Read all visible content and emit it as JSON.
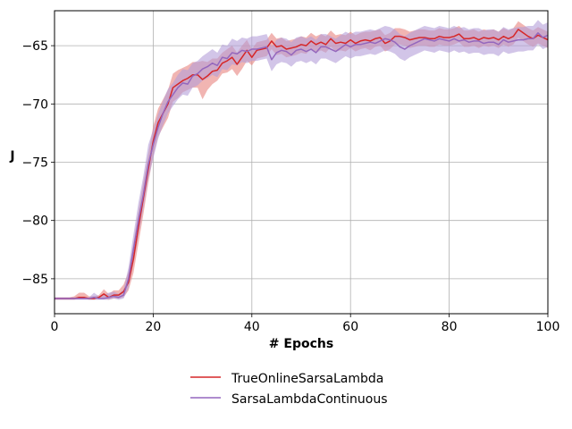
{
  "chart_data": {
    "type": "line",
    "title": "",
    "xlabel": "# Epochs",
    "ylabel": "J",
    "xlim": [
      0,
      100
    ],
    "ylim": [
      -88,
      -62
    ],
    "xticks": [
      0,
      20,
      40,
      60,
      80,
      100
    ],
    "yticks": [
      -85,
      -80,
      -75,
      -70,
      -65
    ],
    "ytick_labels": [
      "−85",
      "−80",
      "−75",
      "−70",
      "−65"
    ],
    "grid": true,
    "legend_position": "bottom-center",
    "x": [
      0,
      1,
      2,
      3,
      4,
      5,
      6,
      7,
      8,
      9,
      10,
      11,
      12,
      13,
      14,
      15,
      16,
      17,
      18,
      19,
      20,
      21,
      22,
      23,
      24,
      25,
      26,
      27,
      28,
      29,
      30,
      31,
      32,
      33,
      34,
      35,
      36,
      37,
      38,
      39,
      40,
      41,
      42,
      43,
      44,
      45,
      46,
      47,
      48,
      49,
      50,
      51,
      52,
      53,
      54,
      55,
      56,
      57,
      58,
      59,
      60,
      61,
      62,
      63,
      64,
      65,
      66,
      67,
      68,
      69,
      70,
      71,
      72,
      73,
      74,
      75,
      76,
      77,
      78,
      79,
      80,
      81,
      82,
      83,
      84,
      85,
      86,
      87,
      88,
      89,
      90,
      91,
      92,
      93,
      94,
      95,
      96,
      97,
      98,
      99,
      100
    ],
    "series": [
      {
        "name": "TrueOnlineSarsaLambda",
        "color": "#d62728",
        "band_color": "#e8837f",
        "values": [
          -86.7,
          -86.7,
          -86.7,
          -86.7,
          -86.7,
          -86.6,
          -86.6,
          -86.7,
          -86.7,
          -86.6,
          -86.3,
          -86.6,
          -86.4,
          -86.4,
          -86.1,
          -85.3,
          -83.3,
          -80.6,
          -78.1,
          -75.6,
          -73.2,
          -71.6,
          -70.8,
          -70.0,
          -68.6,
          -68.3,
          -68.0,
          -67.8,
          -67.5,
          -67.5,
          -67.9,
          -67.6,
          -67.2,
          -67.1,
          -66.5,
          -66.3,
          -66.0,
          -66.6,
          -66.0,
          -65.4,
          -66.0,
          -65.4,
          -65.3,
          -65.2,
          -64.6,
          -65.1,
          -65.0,
          -65.3,
          -65.2,
          -65.1,
          -64.9,
          -65.0,
          -64.6,
          -64.9,
          -64.7,
          -64.9,
          -64.4,
          -64.8,
          -64.7,
          -64.8,
          -64.5,
          -64.8,
          -64.6,
          -64.5,
          -64.6,
          -64.4,
          -64.3,
          -64.8,
          -64.6,
          -64.2,
          -64.2,
          -64.3,
          -64.5,
          -64.4,
          -64.3,
          -64.3,
          -64.4,
          -64.4,
          -64.2,
          -64.3,
          -64.3,
          -64.2,
          -64.0,
          -64.4,
          -64.4,
          -64.3,
          -64.5,
          -64.3,
          -64.4,
          -64.3,
          -64.5,
          -64.2,
          -64.4,
          -64.2,
          -63.6,
          -63.9,
          -64.2,
          -64.4,
          -64.1,
          -64.3,
          -64.5
        ],
        "lower": [
          -86.8,
          -86.8,
          -86.8,
          -86.8,
          -86.8,
          -86.7,
          -86.7,
          -86.8,
          -86.8,
          -86.7,
          -86.7,
          -86.8,
          -86.7,
          -86.7,
          -86.6,
          -86.0,
          -84.5,
          -82.0,
          -79.5,
          -76.8,
          -74.5,
          -72.8,
          -72.0,
          -71.2,
          -69.8,
          -69.5,
          -69.0,
          -68.8,
          -68.6,
          -68.6,
          -69.6,
          -68.8,
          -68.3,
          -68.0,
          -67.4,
          -67.3,
          -67.0,
          -67.6,
          -67.0,
          -66.3,
          -66.7,
          -66.1,
          -66.0,
          -65.9,
          -65.3,
          -65.8,
          -65.7,
          -66.0,
          -65.9,
          -65.8,
          -65.6,
          -65.7,
          -65.3,
          -65.6,
          -65.4,
          -65.6,
          -65.1,
          -65.5,
          -65.4,
          -65.5,
          -65.2,
          -65.5,
          -65.3,
          -65.2,
          -65.4,
          -65.1,
          -65.0,
          -65.5,
          -65.3,
          -64.9,
          -64.9,
          -65.0,
          -65.2,
          -65.1,
          -65.0,
          -65.0,
          -65.1,
          -65.1,
          -64.9,
          -65.0,
          -65.0,
          -64.9,
          -64.7,
          -65.1,
          -65.1,
          -65.0,
          -65.2,
          -65.0,
          -65.1,
          -65.0,
          -65.2,
          -64.9,
          -65.1,
          -64.9,
          -64.3,
          -64.6,
          -64.9,
          -65.1,
          -64.8,
          -65.0,
          -65.2
        ],
        "upper": [
          -86.6,
          -86.6,
          -86.6,
          -86.6,
          -86.5,
          -86.2,
          -86.2,
          -86.5,
          -86.5,
          -86.4,
          -85.9,
          -86.3,
          -86.0,
          -86.0,
          -85.5,
          -84.4,
          -81.9,
          -79.2,
          -76.7,
          -74.3,
          -71.9,
          -70.4,
          -69.6,
          -68.8,
          -67.4,
          -67.1,
          -66.9,
          -66.7,
          -66.4,
          -66.4,
          -66.3,
          -66.4,
          -66.1,
          -66.1,
          -65.6,
          -65.3,
          -65.0,
          -65.6,
          -65.0,
          -64.5,
          -65.3,
          -64.7,
          -64.6,
          -64.5,
          -63.9,
          -64.4,
          -64.3,
          -64.6,
          -64.5,
          -64.4,
          -64.2,
          -64.3,
          -63.9,
          -64.2,
          -64.0,
          -64.2,
          -63.7,
          -64.1,
          -64.0,
          -64.1,
          -63.8,
          -64.1,
          -63.9,
          -63.8,
          -63.8,
          -63.7,
          -63.6,
          -64.1,
          -63.9,
          -63.5,
          -63.5,
          -63.6,
          -63.8,
          -63.7,
          -63.6,
          -63.6,
          -63.7,
          -63.7,
          -63.5,
          -63.6,
          -63.6,
          -63.5,
          -63.3,
          -63.7,
          -63.7,
          -63.6,
          -63.8,
          -63.6,
          -63.7,
          -63.6,
          -63.8,
          -63.5,
          -63.7,
          -63.5,
          -62.9,
          -63.2,
          -63.5,
          -63.7,
          -63.4,
          -63.6,
          -63.8
        ]
      },
      {
        "name": "SarsaLambdaContinuous",
        "color": "#9467bd",
        "band_color": "#b49fd8",
        "values": [
          -86.7,
          -86.7,
          -86.7,
          -86.7,
          -86.7,
          -86.7,
          -86.7,
          -86.7,
          -86.6,
          -86.7,
          -86.7,
          -86.6,
          -86.5,
          -86.6,
          -86.4,
          -85.0,
          -82.5,
          -80.0,
          -77.8,
          -75.2,
          -73.5,
          -72.0,
          -70.8,
          -69.8,
          -69.2,
          -68.6,
          -68.2,
          -68.3,
          -67.6,
          -67.4,
          -67.0,
          -66.8,
          -66.5,
          -66.7,
          -66.0,
          -66.1,
          -65.6,
          -65.7,
          -65.4,
          -65.5,
          -65.3,
          -65.3,
          -65.2,
          -65.1,
          -66.2,
          -65.6,
          -65.4,
          -65.5,
          -65.8,
          -65.4,
          -65.3,
          -65.5,
          -65.3,
          -65.6,
          -65.1,
          -65.1,
          -65.3,
          -65.5,
          -65.2,
          -64.9,
          -65.1,
          -64.9,
          -64.9,
          -64.8,
          -64.7,
          -64.8,
          -64.6,
          -64.4,
          -64.5,
          -64.7,
          -65.1,
          -65.3,
          -65.0,
          -64.8,
          -64.6,
          -64.4,
          -64.5,
          -64.6,
          -64.4,
          -64.5,
          -64.6,
          -64.4,
          -64.6,
          -64.5,
          -64.7,
          -64.6,
          -64.6,
          -64.8,
          -64.7,
          -64.7,
          -64.9,
          -64.5,
          -64.7,
          -64.6,
          -64.5,
          -64.5,
          -64.4,
          -64.4,
          -63.9,
          -64.3,
          -64.1
        ],
        "lower": [
          -86.8,
          -86.8,
          -86.8,
          -86.8,
          -86.8,
          -86.8,
          -86.8,
          -86.8,
          -86.8,
          -86.8,
          -86.8,
          -86.8,
          -86.7,
          -86.8,
          -86.7,
          -85.8,
          -83.6,
          -81.3,
          -79.0,
          -76.5,
          -74.7,
          -73.0,
          -71.8,
          -70.8,
          -70.2,
          -69.6,
          -69.2,
          -69.3,
          -68.6,
          -68.4,
          -68.0,
          -67.8,
          -67.5,
          -67.7,
          -67.0,
          -67.1,
          -66.6,
          -66.7,
          -66.4,
          -66.5,
          -66.3,
          -66.3,
          -66.2,
          -66.1,
          -67.2,
          -66.6,
          -66.4,
          -66.5,
          -66.8,
          -66.4,
          -66.3,
          -66.5,
          -66.3,
          -66.6,
          -66.1,
          -66.1,
          -66.3,
          -66.5,
          -66.2,
          -65.9,
          -66.1,
          -65.9,
          -65.9,
          -65.8,
          -65.7,
          -65.8,
          -65.6,
          -65.4,
          -65.5,
          -65.7,
          -66.1,
          -66.3,
          -66.0,
          -65.8,
          -65.6,
          -65.4,
          -65.5,
          -65.6,
          -65.4,
          -65.5,
          -65.6,
          -65.4,
          -65.6,
          -65.5,
          -65.7,
          -65.6,
          -65.6,
          -65.8,
          -65.7,
          -65.7,
          -65.9,
          -65.5,
          -65.7,
          -65.6,
          -65.5,
          -65.5,
          -65.4,
          -65.4,
          -64.9,
          -65.3,
          -65.1
        ],
        "upper": [
          -86.6,
          -86.6,
          -86.6,
          -86.6,
          -86.6,
          -86.6,
          -86.6,
          -86.6,
          -86.2,
          -86.5,
          -86.4,
          -86.2,
          -86.1,
          -86.3,
          -85.9,
          -84.0,
          -81.2,
          -78.5,
          -76.2,
          -73.5,
          -72.2,
          -70.9,
          -69.7,
          -68.7,
          -68.2,
          -67.5,
          -67.0,
          -67.1,
          -66.5,
          -66.3,
          -65.9,
          -65.6,
          -65.3,
          -65.6,
          -64.9,
          -65.0,
          -64.4,
          -64.6,
          -64.3,
          -64.4,
          -64.2,
          -64.2,
          -64.1,
          -64.0,
          -65.1,
          -64.5,
          -64.3,
          -64.4,
          -64.7,
          -64.3,
          -64.2,
          -64.4,
          -64.2,
          -64.5,
          -64.0,
          -64.0,
          -64.2,
          -64.4,
          -64.1,
          -63.8,
          -64.0,
          -63.8,
          -63.8,
          -63.7,
          -63.6,
          -63.7,
          -63.5,
          -63.3,
          -63.4,
          -63.6,
          -64.0,
          -64.2,
          -63.9,
          -63.7,
          -63.5,
          -63.3,
          -63.4,
          -63.5,
          -63.3,
          -63.4,
          -63.5,
          -63.3,
          -63.5,
          -63.4,
          -63.6,
          -63.5,
          -63.5,
          -63.7,
          -63.6,
          -63.6,
          -63.8,
          -63.4,
          -63.6,
          -63.5,
          -63.4,
          -63.4,
          -63.3,
          -63.3,
          -62.8,
          -63.2,
          -63.0
        ]
      }
    ]
  }
}
